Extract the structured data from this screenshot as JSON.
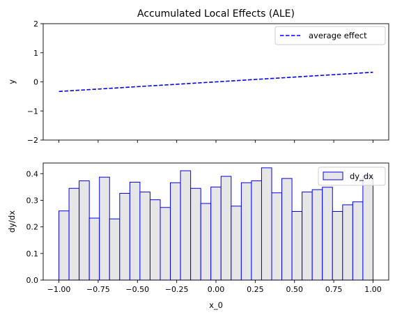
{
  "chart_data": [
    {
      "type": "line",
      "title": "Accumulated Local Effects (ALE)",
      "xlabel": "",
      "ylabel": "y",
      "xlim": [
        -1.1,
        1.1
      ],
      "ylim": [
        -2,
        2
      ],
      "yticks": [
        "−2",
        "−1",
        "0",
        "1",
        "2"
      ],
      "ytick_values": [
        -2,
        -1,
        0,
        1,
        2
      ],
      "grid": false,
      "legend": "top-right",
      "series": [
        {
          "name": "average effect",
          "color": "#0000ff",
          "style": "dashed",
          "x": [
            -1.0,
            1.0
          ],
          "y": [
            -0.33,
            0.33
          ]
        }
      ]
    },
    {
      "type": "bar",
      "title": "",
      "xlabel": "x_0",
      "ylabel": "dy/dx",
      "xlim": [
        -1.1,
        1.1
      ],
      "ylim": [
        0,
        0.44
      ],
      "xticks": [
        "−1.00",
        "−0.75",
        "−0.50",
        "−0.25",
        "0.00",
        "0.25",
        "0.50",
        "0.75",
        "1.00"
      ],
      "xtick_values": [
        -1.0,
        -0.75,
        -0.5,
        -0.25,
        0.0,
        0.25,
        0.5,
        0.75,
        1.0
      ],
      "yticks": [
        "0.0",
        "0.1",
        "0.2",
        "0.3",
        "0.4"
      ],
      "ytick_values": [
        0,
        0.1,
        0.2,
        0.3,
        0.4
      ],
      "grid": false,
      "legend": "top-right",
      "series": [
        {
          "name": "dy_dx",
          "edge_color": "#0000ff",
          "fill_color": "#e6e6e6",
          "bin_start": -1.0,
          "bin_end": 1.0,
          "values": [
            0.26,
            0.345,
            0.373,
            0.233,
            0.387,
            0.23,
            0.326,
            0.368,
            0.331,
            0.302,
            0.273,
            0.366,
            0.411,
            0.345,
            0.288,
            0.35,
            0.39,
            0.278,
            0.366,
            0.373,
            0.422,
            0.328,
            0.382,
            0.258,
            0.331,
            0.34,
            0.349,
            0.258,
            0.283,
            0.294,
            0.39
          ]
        }
      ]
    }
  ]
}
